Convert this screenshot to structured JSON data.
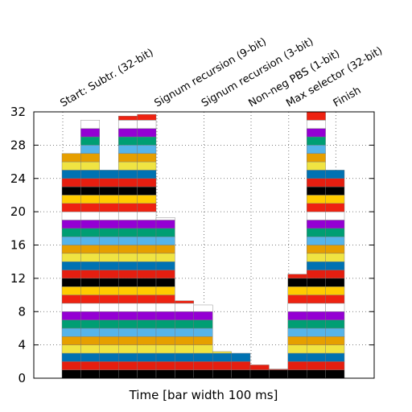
{
  "chart_data": {
    "type": "bar",
    "subtype": "stacked",
    "xlabel": "Time [bar width 100 ms]",
    "ylabel": "",
    "ylim": [
      0,
      32
    ],
    "yticks": [
      0,
      4,
      8,
      12,
      16,
      20,
      24,
      28,
      32
    ],
    "grid": true,
    "bars": [
      {
        "x": 0,
        "total": 27
      },
      {
        "x": 1,
        "total": 31
      },
      {
        "x": 2,
        "total": 25
      },
      {
        "x": 3,
        "total": 31.5
      },
      {
        "x": 4,
        "total": 31.7
      },
      {
        "x": 5,
        "total": 19.3
      },
      {
        "x": 6,
        "total": 9.3
      },
      {
        "x": 7,
        "total": 8.8
      },
      {
        "x": 8,
        "total": 3.2
      },
      {
        "x": 9,
        "total": 3
      },
      {
        "x": 10,
        "total": 1.6
      },
      {
        "x": 11,
        "total": 1.1
      },
      {
        "x": 12,
        "total": 12.5
      },
      {
        "x": 13,
        "total": 32
      },
      {
        "x": 14,
        "total": 25
      }
    ],
    "phase_markers": [
      {
        "label": "Start: Subtr. (32-bit)",
        "x": 0
      },
      {
        "label": "Signum recursion (9-bit)",
        "x": 5
      },
      {
        "label": "Signum recursion (3-bit)",
        "x": 7.5
      },
      {
        "label": "Non-neg PBS (1-bit)",
        "x": 10
      },
      {
        "label": "Max selector (32-bit)",
        "x": 12
      },
      {
        "label": "Finish",
        "x": 14.5
      }
    ],
    "segment_colors": [
      "#000000",
      "#e51e10",
      "#0072b2",
      "#f0e442",
      "#e69f00",
      "#56b4e9",
      "#009e73",
      "#9400d3",
      "#ffffff",
      "#ee2211",
      "#ffcc00"
    ]
  }
}
